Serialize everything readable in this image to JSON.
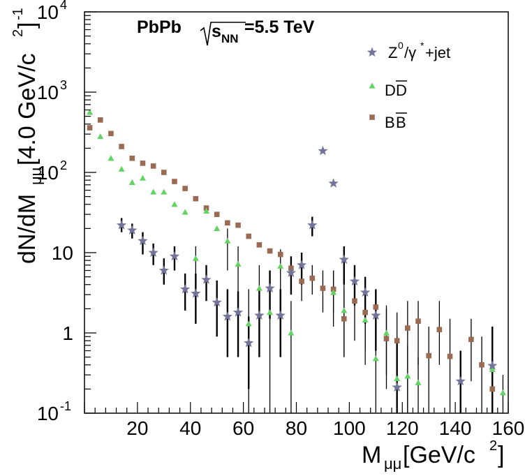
{
  "chart_data": {
    "type": "scatter",
    "title": "PbPb √s_NN=5.5 TeV",
    "title_parts": {
      "a": "PbPb ",
      "b": "s",
      "c": "NN",
      "d": "=5.5 TeV"
    },
    "xlabel": "M_μμ[GeV/c²]",
    "xlabel_parts": {
      "a": "M",
      "b": "μμ",
      "c": "[GeV/c",
      "d": "2",
      "e": "]"
    },
    "ylabel": "dN/dM_μμ[4.0 GeV/c²]⁻¹",
    "ylabel_parts": {
      "a": "dN/dM",
      "b": "μμ",
      "c": "[4.0 GeV/c",
      "d": "2",
      "e": "]",
      "f": "-1"
    },
    "xlim": [
      0,
      160
    ],
    "ylim": [
      0.1,
      10000
    ],
    "yscale": "log",
    "grid": false,
    "legend_position": "top-right",
    "x_ticks": [
      "20",
      "40",
      "60",
      "80",
      "100",
      "120",
      "140",
      "160"
    ],
    "y_ticks": [
      {
        "base": "10",
        "exp": "-1",
        "value": 0.1
      },
      {
        "base": "1",
        "exp": "",
        "value": 1
      },
      {
        "base": "10",
        "exp": "",
        "value": 10
      },
      {
        "base": "10",
        "exp": "2",
        "value": 100
      },
      {
        "base": "10",
        "exp": "3",
        "value": 1000
      },
      {
        "base": "10",
        "exp": "4",
        "value": 10000
      }
    ],
    "legend": [
      {
        "label": "Z⁰/γ*+jet",
        "parts": {
          "a": "Z",
          "b": "0",
          "c": "/γ",
          "d": "*",
          "e": "+jet"
        }
      },
      {
        "label": "DD̄",
        "parts": {
          "a": "D",
          "b": "D"
        }
      },
      {
        "label": "BB̄",
        "parts": {
          "a": "B",
          "b": "B"
        }
      }
    ],
    "series": [
      {
        "name": "Z⁰/γ*+jet",
        "marker": "star",
        "color": "#74739a",
        "points": [
          {
            "x": 14,
            "y": 22,
            "lo": 18,
            "hi": 27
          },
          {
            "x": 18,
            "y": 19,
            "lo": 15,
            "hi": 23
          },
          {
            "x": 22,
            "y": 14,
            "lo": 9.5,
            "hi": 18
          },
          {
            "x": 26,
            "y": 10,
            "lo": 7,
            "hi": 13
          },
          {
            "x": 30,
            "y": 6,
            "lo": 4,
            "hi": 8.5
          },
          {
            "x": 34,
            "y": 9,
            "lo": 6,
            "hi": 12
          },
          {
            "x": 38,
            "y": 3.5,
            "lo": 1.9,
            "hi": 5.5
          },
          {
            "x": 42,
            "y": 3.1,
            "lo": 1.3,
            "hi": 5.5
          },
          {
            "x": 46,
            "y": 4.6,
            "lo": 2.5,
            "hi": 7
          },
          {
            "x": 50,
            "y": 2.4,
            "lo": 0.9,
            "hi": 4.5
          },
          {
            "x": 54,
            "y": 1.6,
            "lo": 0.5,
            "hi": 3.5
          },
          {
            "x": 58,
            "y": 1.8,
            "lo": 0.5,
            "hi": 3.3
          },
          {
            "x": 62,
            "y": 0.75,
            "lo": 0.2,
            "hi": 1.6
          },
          {
            "x": 66,
            "y": 1.65,
            "lo": 0.5,
            "hi": 3.5
          },
          {
            "x": 70,
            "y": 3.6,
            "lo": 1.5,
            "hi": 6
          },
          {
            "x": 74,
            "y": 1.65,
            "lo": 0.5,
            "hi": 3.5
          },
          {
            "x": 78,
            "y": 5.6,
            "lo": 3,
            "hi": 9
          },
          {
            "x": 82,
            "y": 7,
            "lo": 4,
            "hi": 10
          },
          {
            "x": 86,
            "y": 22,
            "lo": 16,
            "hi": 28
          },
          {
            "x": 90,
            "y": 185
          },
          {
            "x": 94,
            "y": 73
          },
          {
            "x": 98,
            "y": 8.2,
            "lo": 4,
            "hi": 12
          },
          {
            "x": 102,
            "y": 4.4,
            "lo": 2.2,
            "hi": 7
          },
          {
            "x": 106,
            "y": 3.2,
            "lo": 1.3,
            "hi": 5
          },
          {
            "x": 110,
            "y": 1.65,
            "lo": 0.6,
            "hi": 3.5
          },
          {
            "x": 118,
            "y": 0.21,
            "lo": 0.1,
            "hi": 0.8
          },
          {
            "x": 142,
            "y": 0.25,
            "lo": 0.1,
            "hi": 0.6
          },
          {
            "x": 154,
            "y": 0.39,
            "lo": 0.1,
            "hi": 1.2
          }
        ]
      },
      {
        "name": "DD̄",
        "marker": "triangle",
        "color": "#63d463",
        "points": [
          {
            "x": 2,
            "y": 560
          },
          {
            "x": 6,
            "y": 280
          },
          {
            "x": 10,
            "y": 150
          },
          {
            "x": 14,
            "y": 110
          },
          {
            "x": 18,
            "y": 75
          },
          {
            "x": 22,
            "y": 85
          },
          {
            "x": 26,
            "y": 57
          },
          {
            "x": 30,
            "y": 57
          },
          {
            "x": 34,
            "y": 40
          },
          {
            "x": 38,
            "y": 32
          },
          {
            "x": 42,
            "y": 8.5,
            "lo": 3.2,
            "hi": 12
          },
          {
            "x": 46,
            "y": 33
          },
          {
            "x": 50,
            "y": 20
          },
          {
            "x": 54,
            "y": 14,
            "lo": 6,
            "hi": 20
          },
          {
            "x": 58,
            "y": 7.2,
            "lo": 3,
            "hi": 12
          },
          {
            "x": 62,
            "y": 1.3,
            "lo": 0.1,
            "hi": 3.5
          },
          {
            "x": 66,
            "y": 3.6,
            "lo": 0.5,
            "hi": 7
          },
          {
            "x": 70,
            "y": 1.8,
            "lo": 0.1,
            "hi": 4.5
          },
          {
            "x": 74,
            "y": 6.8,
            "lo": 3,
            "hi": 11
          },
          {
            "x": 78,
            "y": 1.0,
            "lo": 0.1,
            "hi": 2.5
          },
          {
            "x": 94,
            "y": 3.2,
            "lo": 1.2,
            "hi": 6
          },
          {
            "x": 98,
            "y": 1.9,
            "lo": 0.5,
            "hi": 4
          },
          {
            "x": 106,
            "y": 1.45,
            "lo": 0.4,
            "hi": 3
          },
          {
            "x": 110,
            "y": 0.48,
            "lo": 0.1,
            "hi": 1.8
          },
          {
            "x": 114,
            "y": 1.0,
            "lo": 0.2,
            "hi": 2.2
          },
          {
            "x": 118,
            "y": 0.27,
            "lo": 0.1,
            "hi": 0.9
          },
          {
            "x": 122,
            "y": 0.29,
            "lo": 0.1,
            "hi": 0.7
          },
          {
            "x": 126,
            "y": 0.24,
            "lo": 0.1,
            "hi": 0.5
          },
          {
            "x": 154,
            "y": 0.35,
            "lo": 0.15,
            "hi": 0.6
          },
          {
            "x": 158,
            "y": 0.18,
            "lo": 0.1,
            "hi": 0.3
          }
        ]
      },
      {
        "name": "BB̄",
        "marker": "square",
        "color": "#9a6a52",
        "points": [
          {
            "x": 2,
            "y": 360
          },
          {
            "x": 6,
            "y": 450
          },
          {
            "x": 10,
            "y": 305
          },
          {
            "x": 14,
            "y": 210
          },
          {
            "x": 18,
            "y": 150
          },
          {
            "x": 22,
            "y": 130
          },
          {
            "x": 26,
            "y": 120
          },
          {
            "x": 30,
            "y": 100
          },
          {
            "x": 34,
            "y": 77
          },
          {
            "x": 38,
            "y": 63
          },
          {
            "x": 42,
            "y": 47
          },
          {
            "x": 46,
            "y": 36
          },
          {
            "x": 50,
            "y": 30
          },
          {
            "x": 54,
            "y": 23.5
          },
          {
            "x": 58,
            "y": 22
          },
          {
            "x": 62,
            "y": 16
          },
          {
            "x": 66,
            "y": 12.5
          },
          {
            "x": 70,
            "y": 10.5
          },
          {
            "x": 74,
            "y": 9.5
          },
          {
            "x": 78,
            "y": 6.4
          },
          {
            "x": 82,
            "y": 4.4,
            "lo": 2.5,
            "hi": 7
          },
          {
            "x": 86,
            "y": 4.8,
            "lo": 3,
            "hi": 7
          },
          {
            "x": 90,
            "y": 3.6,
            "lo": 1.8,
            "hi": 6
          },
          {
            "x": 94,
            "y": 3.5,
            "lo": 1.8,
            "hi": 6
          },
          {
            "x": 98,
            "y": 1.5,
            "lo": 0.5,
            "hi": 3.5
          },
          {
            "x": 102,
            "y": 2.5,
            "lo": 0.8,
            "hi": 5
          },
          {
            "x": 106,
            "y": 1.8,
            "lo": 0.6,
            "hi": 3.5
          },
          {
            "x": 110,
            "y": 2.1,
            "lo": 0.8,
            "hi": 3.5
          },
          {
            "x": 114,
            "y": 0.85,
            "lo": 0.3,
            "hi": 2
          },
          {
            "x": 118,
            "y": 0.8,
            "lo": 0.1,
            "hi": 1.8
          },
          {
            "x": 122,
            "y": 1.15,
            "lo": 0.1,
            "hi": 2.5
          },
          {
            "x": 126,
            "y": 1.4,
            "lo": 0.4,
            "hi": 2.5
          },
          {
            "x": 130,
            "y": 0.52,
            "lo": 0.1,
            "hi": 1.2
          },
          {
            "x": 134,
            "y": 1.1,
            "lo": 0.4,
            "hi": 2.5
          },
          {
            "x": 138,
            "y": 0.51,
            "lo": 0.1,
            "hi": 1.5
          },
          {
            "x": 146,
            "y": 0.83,
            "lo": 0.25,
            "hi": 1.5
          },
          {
            "x": 150,
            "y": 0.4,
            "lo": 0.1,
            "hi": 0.9
          },
          {
            "x": 154,
            "y": 0.2,
            "lo": 0.1,
            "hi": 0.5
          }
        ]
      }
    ]
  }
}
